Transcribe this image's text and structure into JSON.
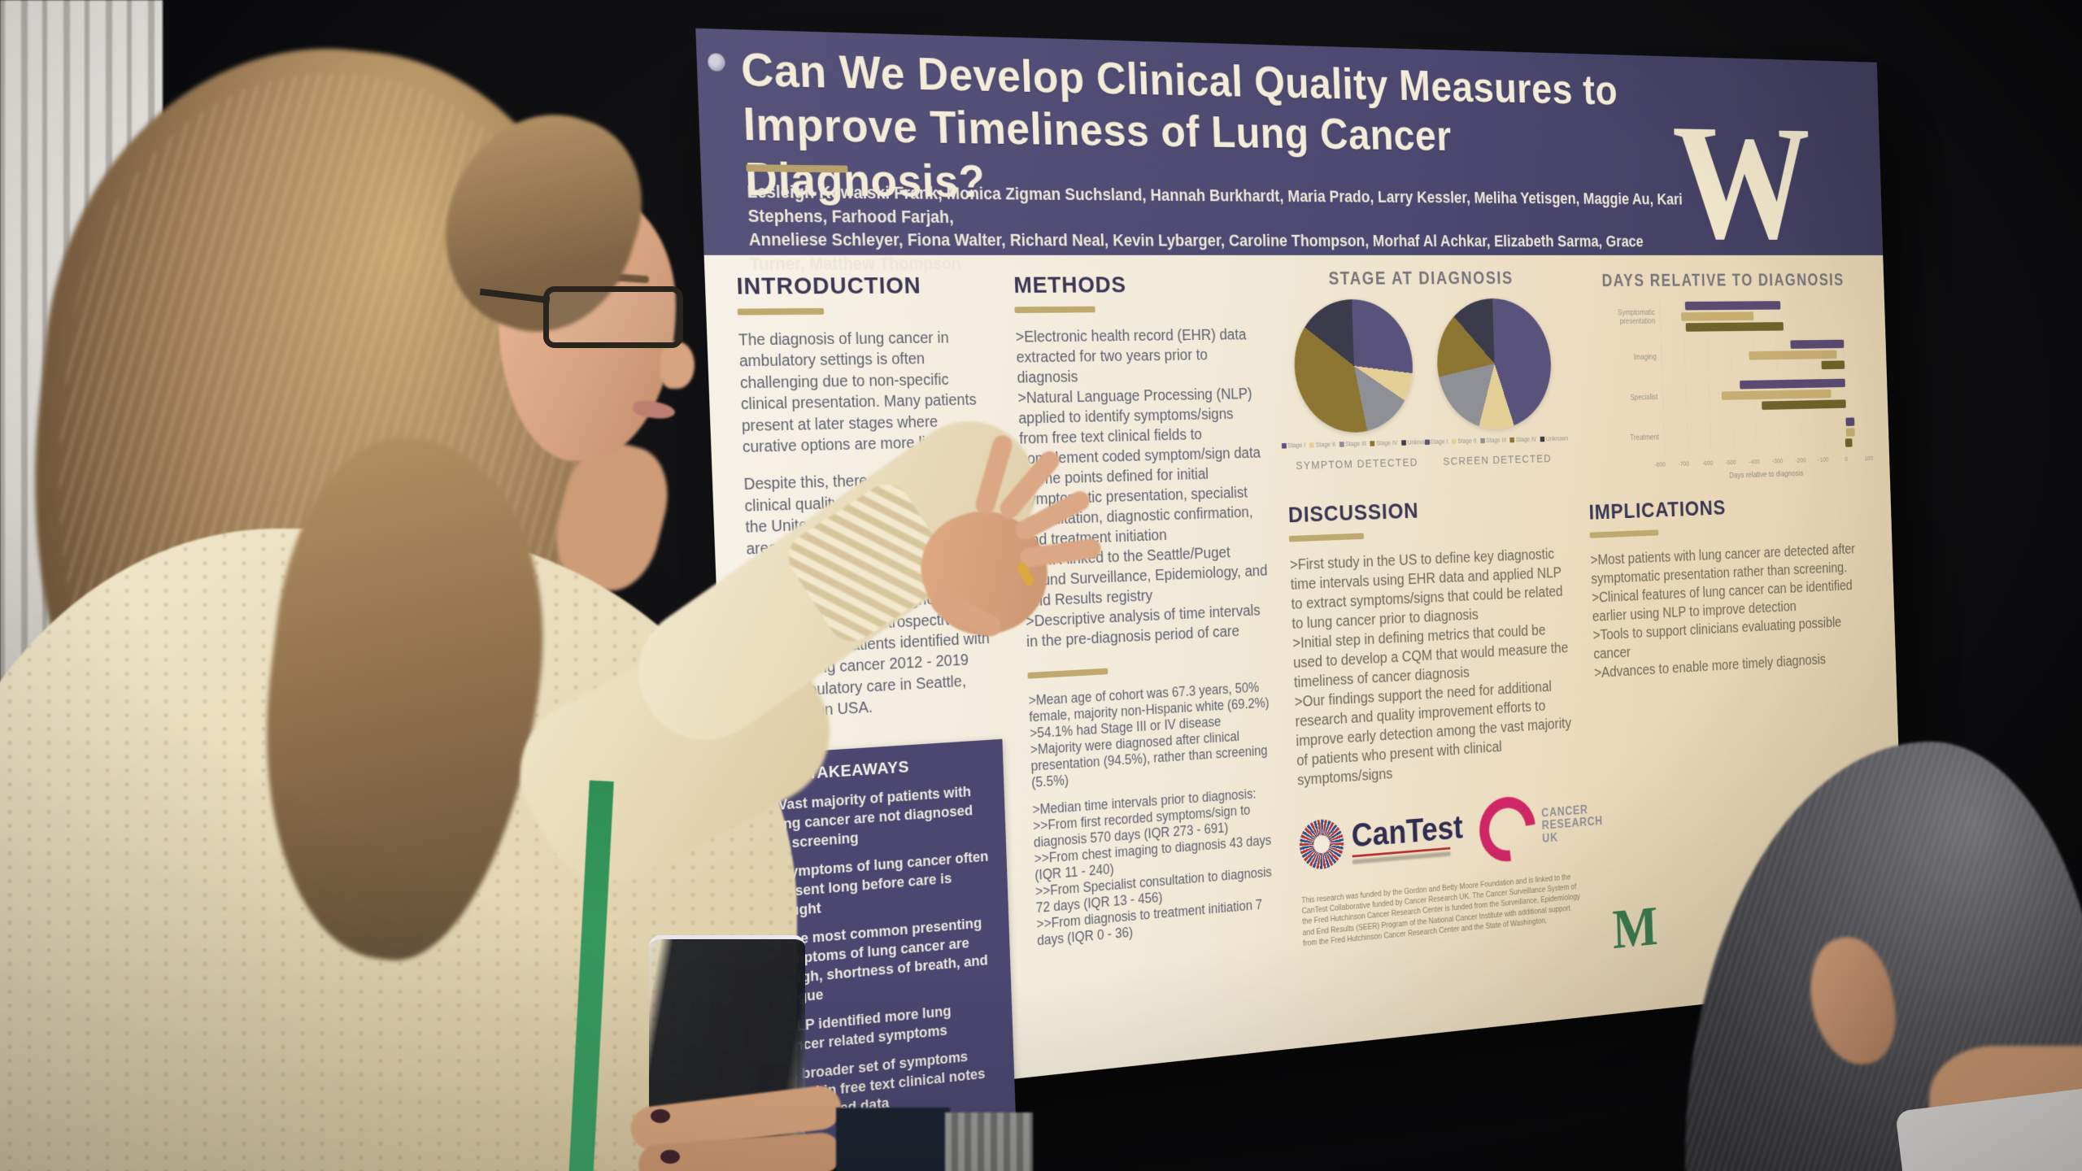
{
  "poster": {
    "header": {
      "title_line1": "Can We Develop Clinical Quality Measures to",
      "title_line2": "Improve Timeliness of Lung Cancer Diagnosis?",
      "authors_line1": "Lesleigh Kowalski Frank, Monica Zigman Suchsland, Hannah Burkhardt, Maria Prado, Larry Kessler, Meliha Yetisgen, Maggie Au, Kari Stephens, Farhood Farjah,",
      "authors_line2": "Anneliese Schleyer, Fiona Walter, Richard Neal, Kevin Lybarger, Caroline Thompson, Morhaf Al Achkar, Elizabeth Sarma, Grace Turner, Matthew Thompson",
      "university_logo": "W"
    },
    "introduction": {
      "heading": "INTRODUCTION",
      "p1": "The diagnosis of lung cancer in ambulatory settings is often challenging due to non-specific clinical presentation. Many patients present at later stages where curative options are more limited.",
      "p2": "Despite this, there are currently no clinical quality measures (CQMs) in the United States used to identify areas for practice improvement in diagnosis timeliness or efficiency.",
      "p3": "We describe the pre-diagnosis time intervals among a retrospective cohort of 711 patients identified with primary lung cancer 2012 - 2019 from ambulatory care in Seattle, Washington USA."
    },
    "key_takeaways": {
      "heading": "KEY TAKEAWAYS",
      "b1": ">Vast majority of patients with lung cancer are not diagnosed by screening",
      "b2": ">Symptoms of lung cancer often present long before care is sought",
      "b3": ">The most common presenting symptoms of lung cancer are cough, shortness of breath, and fatigue",
      "b4": ">NLP identified more lung cancer related symptoms",
      "b5": ">A broader set of symptoms found in free text clinical notes than coded data"
    },
    "methods": {
      "heading": "METHODS",
      "b1": ">Electronic health record (EHR) data extracted for two years prior to diagnosis",
      "b2": ">Natural Language Processing (NLP) applied to identify symptoms/signs from free text clinical fields to complement coded symptom/sign data",
      "b3": ">Time points defined for initial symptomatic presentation, specialist consultation, diagnostic confirmation, and treatment initiation",
      "b4": ">EHR linked to the Seattle/Puget Sound Surveillance, Epidemiology, and End Results registry",
      "b5": ">Descriptive analysis of time intervals in the pre-diagnosis period of care"
    },
    "results": {
      "b1": ">Mean age of cohort was 67.3 years, 50% female, majority non-Hispanic white (69.2%)",
      "b2": ">54.1% had Stage III or IV disease",
      "b3": ">Majority were diagnosed after clinical presentation (94.5%), rather than screening (5.5%)",
      "b4": ">Median time intervals prior to diagnosis:",
      "b5": ">>From first recorded symptoms/sign to diagnosis 570 days (IQR 273 - 691)",
      "b6": ">>From chest imaging to diagnosis 43 days (IQR 11 - 240)",
      "b7": ">>From Specialist consultation to diagnosis 72 days (IQR 13 - 456)",
      "b8": ">>From diagnosis to treatment initiation 7 days (IQR 0 - 36)"
    },
    "stage_at_diagnosis": {
      "heading": "STAGE AT DIAGNOSIS",
      "left_label": "SYMPTOM DETECTED",
      "right_label": "SCREEN DETECTED"
    },
    "days_chart": {
      "heading": "DAYS RELATIVE TO DIAGNOSIS",
      "xlabel": "Days relative to diagnosis"
    },
    "discussion": {
      "heading": "DISCUSSION",
      "b1": ">First study in the US to define key diagnostic time intervals using EHR data and applied NLP to extract symptoms/signs that could be related to lung cancer prior to diagnosis",
      "b2": ">Initial step in defining metrics that could be used to develop a CQM that would measure the timeliness of cancer diagnosis",
      "b3": ">Our findings support the need for additional research and quality improvement efforts to improve early detection among the vast majority of patients who present with clinical symptoms/signs"
    },
    "implications": {
      "heading": "IMPLICATIONS",
      "b1": ">Most patients with lung cancer are detected after symptomatic presentation rather than screening.",
      "b2": ">Clinical features of lung cancer can be identified earlier using NLP to improve detection",
      "b3": ">Tools to support clinicians evaluating possible cancer",
      "b4": ">Advances to enable more timely diagnosis"
    },
    "logos": {
      "cantest": "CanTest",
      "cruk_1": "CANCER",
      "cruk_2": "RESEARCH",
      "cruk_3": "UK",
      "moore": "M"
    },
    "funding": "This research was funded by the Gordon and Betty Moore Foundation and is linked to the CanTest Collaborative funded by Cancer Research UK. The Cancer Surveillance System of the Fred Hutchinson Cancer Research Center is funded from the Surveillance, Epidemiology and End Results (SEER) Program of the National Cancer Institute with additional support from the Fred Hutchinson Cancer Research Center and the State of Washington."
  },
  "chart_data": [
    {
      "type": "pie",
      "title": "STAGE AT DIAGNOSIS - SYMPTOM DETECTED",
      "labels": [
        "Stage I",
        "Stage II",
        "Stage III",
        "Stage IV",
        "Unknown"
      ],
      "values": [
        27,
        7,
        13,
        38,
        15
      ],
      "colors": [
        "#59527b",
        "#e4cf97",
        "#8f8f96",
        "#8c7632",
        "#3b3b4b"
      ],
      "legend_position": "bottom"
    },
    {
      "type": "pie",
      "title": "STAGE AT DIAGNOSIS - SCREEN DETECTED",
      "labels": [
        "Stage I",
        "Stage II",
        "Stage III",
        "Stage IV",
        "Unknown"
      ],
      "values": [
        45,
        10,
        17,
        16,
        12
      ],
      "colors": [
        "#59527b",
        "#e4cf97",
        "#8f8f96",
        "#8c7632",
        "#3b3b4b"
      ],
      "legend_position": "bottom"
    },
    {
      "type": "bar",
      "subtype": "horizontal-range",
      "title": "DAYS RELATIVE TO DIAGNOSIS",
      "xlabel": "Days relative to diagnosis",
      "xlim": [
        -800,
        100
      ],
      "ticks": [
        -800,
        -700,
        -600,
        -500,
        -400,
        -300,
        -200,
        -100,
        0,
        100
      ],
      "grid": true,
      "categories": [
        "Symptomatic presentation",
        "Imaging",
        "Specialist",
        "Treatment"
      ],
      "series": [
        {
          "name": "purple",
          "color": "#5c4a72",
          "ranges": [
            [
              -690,
              -275
            ],
            [
              -235,
              5
            ],
            [
              -465,
              5
            ],
            [
              2,
              40
            ]
          ]
        },
        {
          "name": "tan",
          "color": "#c6ad72",
          "ranges": [
            [
              -710,
              -395
            ],
            [
              -420,
              -30
            ],
            [
              -545,
              -60
            ],
            [
              2,
              40
            ]
          ]
        },
        {
          "name": "olive",
          "color": "#6f632a",
          "ranges": [
            [
              -690,
              -265
            ],
            [
              -100,
              5
            ],
            [
              -370,
              5
            ],
            [
              -5,
              28
            ]
          ]
        }
      ]
    }
  ]
}
